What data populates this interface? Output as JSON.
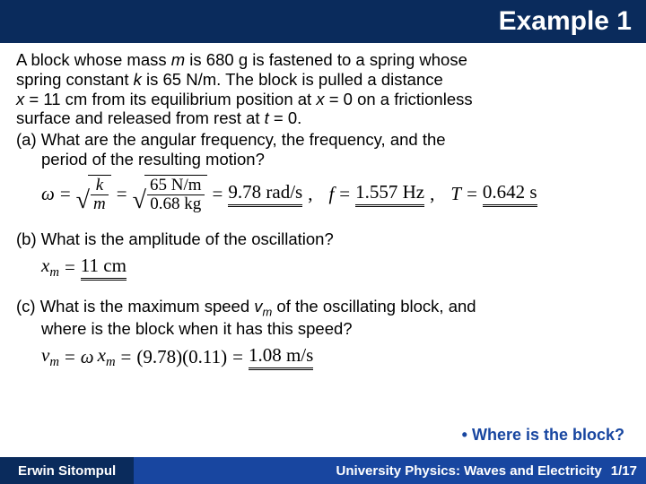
{
  "colors": {
    "title_bg": "#0a2b5c",
    "title_fg": "#ffffff",
    "footer_author_bg": "#0a2b5c",
    "footer_author_fg": "#ffffff",
    "footer_course_bg": "#1846a0",
    "footer_course_fg": "#ffffff",
    "bullet_color": "#1846a0"
  },
  "title": "Example 1",
  "problem": {
    "line1_a": "A block whose mass ",
    "line1_b": " is 680 g is fastened to a spring whose",
    "line2_a": "spring constant ",
    "line2_b": " is 65 N/m. The block is pulled a distance",
    "line3_a": " = 11 cm from its equilibrium position at ",
    "line3_b": " = 0 on a frictionless",
    "line4_a": "surface and released from rest at ",
    "line4_b": " = 0.",
    "m": "m",
    "k": "k",
    "x": "x",
    "t": "t"
  },
  "partA": {
    "q1": "(a) What are the angular frequency, the frequency, and the",
    "q2": "period of the resulting motion?",
    "omega": "ω",
    "eq": "=",
    "k": "k",
    "m": "m",
    "num": "65 N/m",
    "den": "0.68 kg",
    "omega_val": "9.78  rad/s",
    "f_lbl": "f",
    "f_val": "1.557 Hz",
    "T_lbl": "T",
    "T_val": "0.642 s",
    "comma": ","
  },
  "partB": {
    "q": "(b) What is the amplitude of the oscillation?",
    "xm": "x",
    "sub": "m",
    "eq": "=",
    "val": "11 cm"
  },
  "partC": {
    "q1_a": "(c) What is the maximum speed ",
    "q1_b": " of the oscillating block, and",
    "q2": "where is the block when it has this speed?",
    "vm_v": "v",
    "vm_m": "m",
    "eq": "=",
    "omega": "ω",
    "xm_x": "x",
    "xm_m": "m",
    "nums": "(9.78)(0.11)",
    "val": "1.08  m/s"
  },
  "bullet": "• Where is the block?",
  "footer": {
    "author": "Erwin Sitompul",
    "course": "University Physics: Waves and Electricity",
    "page": "1/17"
  }
}
